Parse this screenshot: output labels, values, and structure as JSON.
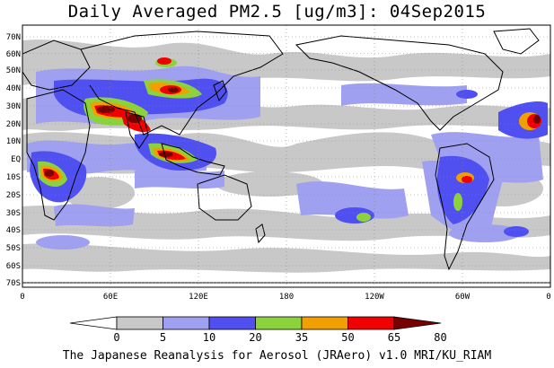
{
  "title": "Daily Averaged PM2.5 [ug/m3]: 04Sep2015",
  "credit": "The Japanese Reanalysis for Aerosol (JRAero) v1.0 MRI/KU_RIAM",
  "lat_labels": [
    "70N",
    "60N",
    "50N",
    "40N",
    "30N",
    "20N",
    "10N",
    "EQ",
    "10S",
    "20S",
    "30S",
    "40S",
    "50S",
    "60S",
    "70S"
  ],
  "lon_labels": [
    "0",
    "60E",
    "120E",
    "180",
    "120W",
    "60W",
    "0"
  ],
  "colorbar": {
    "ticks": [
      "0",
      "5",
      "10",
      "20",
      "35",
      "50",
      "65",
      "80"
    ],
    "colors": [
      "#ffffff",
      "#c8c8c8",
      "#a0a0f0",
      "#5050f0",
      "#8cd23c",
      "#f0a000",
      "#f00000",
      "#780000"
    ]
  }
}
